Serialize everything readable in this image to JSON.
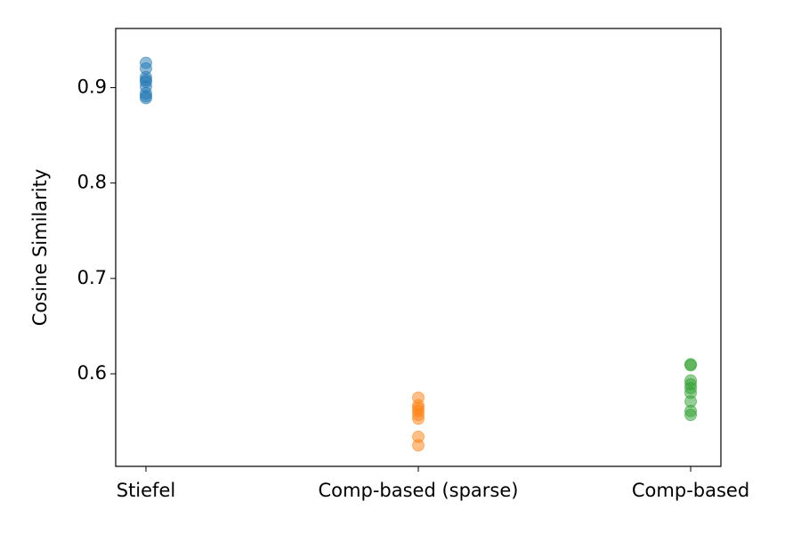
{
  "chart_data": {
    "type": "strip",
    "ylabel": "Cosine Similarity",
    "categories": [
      "Stiefel",
      "Comp-based (sparse)",
      "Comp-based"
    ],
    "colors": [
      "#1f77b4",
      "#ff7f0e",
      "#2ca02c"
    ],
    "values": [
      [
        0.926,
        0.92,
        0.911,
        0.908,
        0.906,
        0.901,
        0.894,
        0.891,
        0.889
      ],
      [
        0.575,
        0.567,
        0.564,
        0.561,
        0.557,
        0.553,
        0.534,
        0.525
      ],
      [
        0.61,
        0.609,
        0.593,
        0.589,
        0.585,
        0.58,
        0.571,
        0.561,
        0.557
      ]
    ],
    "ylim": [
      0.503,
      0.962
    ],
    "yticks": [
      0.6,
      0.7,
      0.8,
      0.9
    ],
    "grid": false
  }
}
